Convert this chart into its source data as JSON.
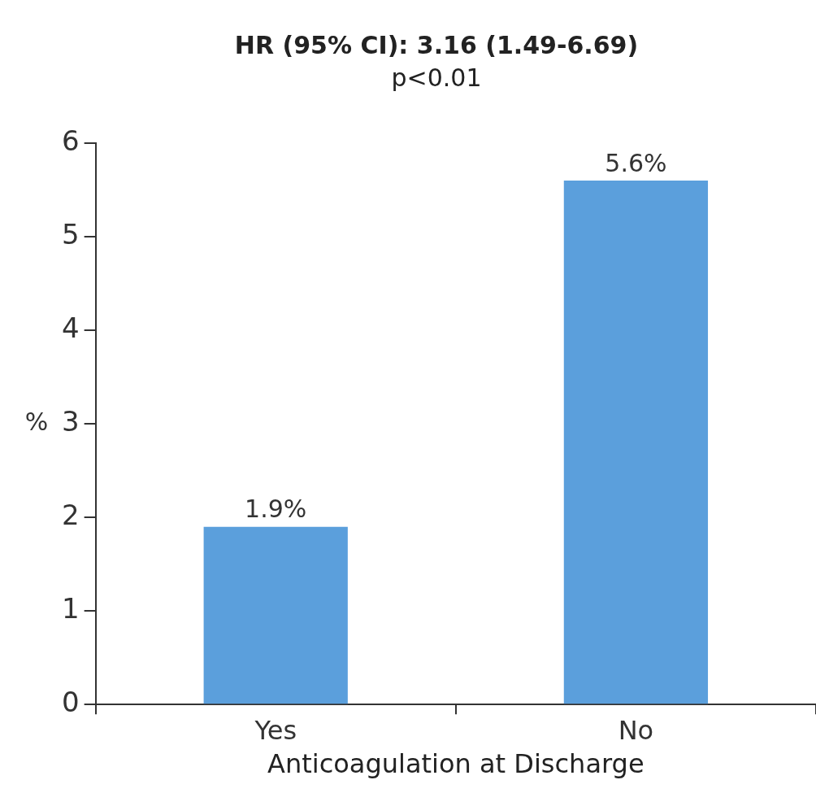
{
  "chart_data": {
    "type": "bar",
    "title": "HR (95% CI): 3.16 (1.49-6.69)",
    "subtitle": "p<0.01",
    "xlabel": "Anticoagulation at Discharge",
    "ylabel": "%",
    "categories": [
      "Yes",
      "No"
    ],
    "values": [
      1.9,
      5.6
    ],
    "value_labels": [
      "1.9%",
      "5.6%"
    ],
    "color": "#5b9fdc",
    "ylim": [
      0,
      6
    ],
    "yticks": [
      0,
      1,
      2,
      3,
      4,
      5,
      6
    ],
    "grid": false,
    "legend": false
  }
}
